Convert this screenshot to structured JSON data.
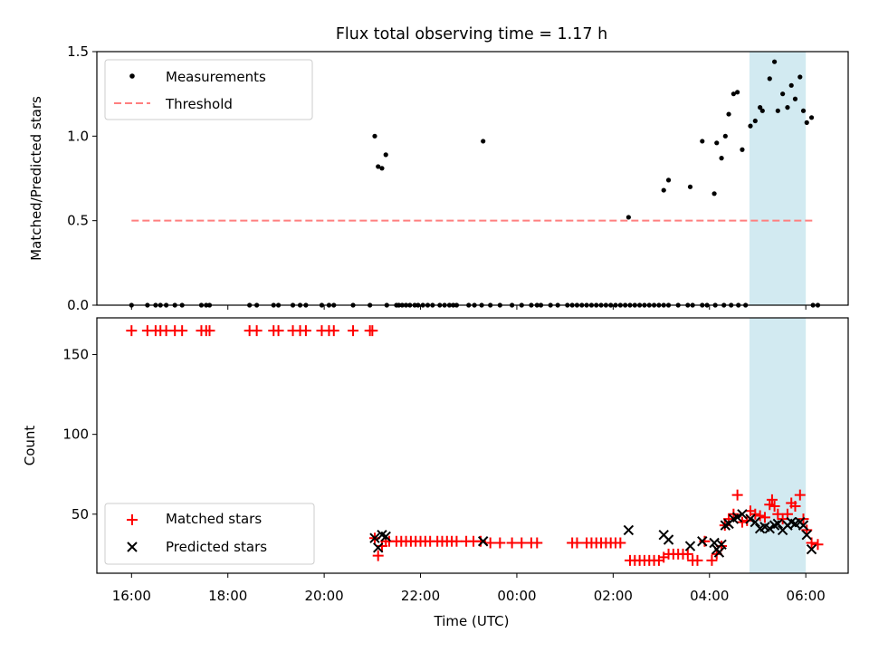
{
  "title": "Flux total observing time = 1.17 h",
  "xlabel": "Time (UTC)",
  "x_ticks": [
    "16:00",
    "18:00",
    "20:00",
    "22:00",
    "00:00",
    "02:00",
    "04:00",
    "06:00"
  ],
  "colors": {
    "measurement": "#000000",
    "threshold": "#ff7f7f",
    "matched": "#ff0000",
    "predicted": "#000000",
    "highlight": "#add8e6"
  },
  "chart_data": [
    {
      "type": "scatter",
      "ylabel": "Matched/Predicted stars",
      "x_unit": "hours since 16:00 UTC",
      "xlim": [
        -0.72,
        14.88
      ],
      "ylim": [
        0,
        1.5
      ],
      "y_ticks": [
        "0.0",
        "0.5",
        "1.0",
        "1.5"
      ],
      "highlight_span": [
        12.83,
        14.0
      ],
      "legend": {
        "placement": "upper left",
        "entries": [
          "Measurements",
          "Threshold"
        ]
      },
      "threshold": {
        "name": "Threshold",
        "y": 0.5,
        "x_range": [
          0,
          14.17
        ]
      },
      "series": [
        {
          "name": "Measurements",
          "points": [
            [
              0.0,
              0
            ],
            [
              0.33,
              0
            ],
            [
              0.5,
              0
            ],
            [
              0.6,
              0
            ],
            [
              0.72,
              0
            ],
            [
              0.9,
              0
            ],
            [
              1.05,
              0
            ],
            [
              1.45,
              0
            ],
            [
              1.55,
              0
            ],
            [
              1.62,
              0
            ],
            [
              2.45,
              0
            ],
            [
              2.6,
              0
            ],
            [
              2.95,
              0
            ],
            [
              3.05,
              0
            ],
            [
              3.35,
              0
            ],
            [
              3.5,
              0
            ],
            [
              3.62,
              0
            ],
            [
              3.95,
              0
            ],
            [
              4.1,
              0
            ],
            [
              4.2,
              0
            ],
            [
              4.6,
              0
            ],
            [
              4.95,
              0
            ],
            [
              5.05,
              1.0
            ],
            [
              5.12,
              0.82
            ],
            [
              5.2,
              0.81
            ],
            [
              5.28,
              0.89
            ],
            [
              5.3,
              0
            ],
            [
              5.5,
              0
            ],
            [
              5.55,
              0
            ],
            [
              5.62,
              0
            ],
            [
              5.7,
              0
            ],
            [
              5.78,
              0
            ],
            [
              5.88,
              0
            ],
            [
              5.95,
              0
            ],
            [
              6.05,
              0
            ],
            [
              6.15,
              0
            ],
            [
              6.25,
              0
            ],
            [
              6.4,
              0
            ],
            [
              6.5,
              0
            ],
            [
              6.6,
              0
            ],
            [
              6.68,
              0
            ],
            [
              6.75,
              0
            ],
            [
              7.0,
              0
            ],
            [
              7.12,
              0
            ],
            [
              7.27,
              0
            ],
            [
              7.3,
              0.97
            ],
            [
              7.45,
              0
            ],
            [
              7.65,
              0
            ],
            [
              7.9,
              0
            ],
            [
              8.1,
              0
            ],
            [
              8.3,
              0
            ],
            [
              8.42,
              0
            ],
            [
              8.5,
              0
            ],
            [
              8.7,
              0
            ],
            [
              8.85,
              0
            ],
            [
              9.05,
              0
            ],
            [
              9.15,
              0
            ],
            [
              9.25,
              0
            ],
            [
              9.35,
              0
            ],
            [
              9.45,
              0
            ],
            [
              9.55,
              0
            ],
            [
              9.65,
              0
            ],
            [
              9.75,
              0
            ],
            [
              9.85,
              0
            ],
            [
              9.95,
              0
            ],
            [
              10.05,
              0
            ],
            [
              10.15,
              0
            ],
            [
              10.25,
              0
            ],
            [
              10.35,
              0
            ],
            [
              10.45,
              0
            ],
            [
              10.55,
              0
            ],
            [
              10.65,
              0
            ],
            [
              10.75,
              0
            ],
            [
              10.85,
              0
            ],
            [
              10.95,
              0
            ],
            [
              11.05,
              0
            ],
            [
              11.15,
              0
            ],
            [
              11.35,
              0
            ],
            [
              11.55,
              0
            ],
            [
              11.65,
              0
            ],
            [
              11.85,
              0
            ],
            [
              11.95,
              0
            ],
            [
              12.12,
              0
            ],
            [
              12.3,
              0
            ],
            [
              12.45,
              0
            ],
            [
              12.6,
              0
            ],
            [
              12.75,
              0
            ],
            [
              10.32,
              0.52
            ],
            [
              11.05,
              0.68
            ],
            [
              11.15,
              0.74
            ],
            [
              11.6,
              0.7
            ],
            [
              11.85,
              0.97
            ],
            [
              12.1,
              0.66
            ],
            [
              12.15,
              0.96
            ],
            [
              12.25,
              0.87
            ],
            [
              12.33,
              1.0
            ],
            [
              12.4,
              1.13
            ],
            [
              12.5,
              1.25
            ],
            [
              12.58,
              1.26
            ],
            [
              12.68,
              0.92
            ],
            [
              12.85,
              1.06
            ],
            [
              12.95,
              1.09
            ],
            [
              13.05,
              1.17
            ],
            [
              13.1,
              1.15
            ],
            [
              13.25,
              1.34
            ],
            [
              13.35,
              1.44
            ],
            [
              13.42,
              1.15
            ],
            [
              13.52,
              1.25
            ],
            [
              13.62,
              1.17
            ],
            [
              13.7,
              1.3
            ],
            [
              13.78,
              1.22
            ],
            [
              13.88,
              1.35
            ],
            [
              13.95,
              1.15
            ],
            [
              14.02,
              1.08
            ],
            [
              14.12,
              1.11
            ],
            [
              14.15,
              0
            ],
            [
              14.25,
              0
            ]
          ]
        }
      ]
    },
    {
      "type": "scatter",
      "ylabel": "Count",
      "x_unit": "hours since 16:00 UTC",
      "xlim": [
        -0.72,
        14.88
      ],
      "ylim": [
        13,
        173
      ],
      "y_ticks": [
        "50",
        "100",
        "150"
      ],
      "highlight_span": [
        12.83,
        14.0
      ],
      "legend": {
        "placement": "lower left",
        "entries": [
          "Matched stars",
          "Predicted stars"
        ]
      },
      "series": [
        {
          "name": "Matched stars",
          "marker": "plus",
          "points": [
            [
              0.0,
              165
            ],
            [
              0.33,
              165
            ],
            [
              0.5,
              165
            ],
            [
              0.6,
              165
            ],
            [
              0.72,
              165
            ],
            [
              0.9,
              165
            ],
            [
              1.05,
              165
            ],
            [
              1.45,
              165
            ],
            [
              1.55,
              165
            ],
            [
              1.62,
              165
            ],
            [
              2.45,
              165
            ],
            [
              2.6,
              165
            ],
            [
              2.95,
              165
            ],
            [
              3.05,
              165
            ],
            [
              3.35,
              165
            ],
            [
              3.5,
              165
            ],
            [
              3.62,
              165
            ],
            [
              3.95,
              165
            ],
            [
              4.1,
              165
            ],
            [
              4.2,
              165
            ],
            [
              4.6,
              165
            ],
            [
              4.95,
              165
            ],
            [
              5.0,
              165
            ],
            [
              5.05,
              35
            ],
            [
              5.12,
              24
            ],
            [
              5.2,
              30
            ],
            [
              5.28,
              33
            ],
            [
              5.35,
              33
            ],
            [
              5.5,
              33
            ],
            [
              5.6,
              33
            ],
            [
              5.7,
              33
            ],
            [
              5.8,
              33
            ],
            [
              5.9,
              33
            ],
            [
              6.0,
              33
            ],
            [
              6.1,
              33
            ],
            [
              6.2,
              33
            ],
            [
              6.35,
              33
            ],
            [
              6.45,
              33
            ],
            [
              6.55,
              33
            ],
            [
              6.65,
              33
            ],
            [
              6.75,
              33
            ],
            [
              6.95,
              33
            ],
            [
              7.1,
              33
            ],
            [
              7.25,
              33
            ],
            [
              7.45,
              32
            ],
            [
              7.65,
              32
            ],
            [
              7.9,
              32
            ],
            [
              8.1,
              32
            ],
            [
              8.3,
              32
            ],
            [
              8.42,
              32
            ],
            [
              9.15,
              32
            ],
            [
              9.25,
              32
            ],
            [
              9.45,
              32
            ],
            [
              9.55,
              32
            ],
            [
              9.65,
              32
            ],
            [
              9.75,
              32
            ],
            [
              9.85,
              32
            ],
            [
              9.95,
              32
            ],
            [
              10.05,
              32
            ],
            [
              10.15,
              32
            ],
            [
              10.35,
              21
            ],
            [
              10.45,
              21
            ],
            [
              10.55,
              21
            ],
            [
              10.65,
              21
            ],
            [
              10.75,
              21
            ],
            [
              10.85,
              21
            ],
            [
              10.95,
              21
            ],
            [
              11.05,
              23
            ],
            [
              11.15,
              25
            ],
            [
              11.25,
              25
            ],
            [
              11.35,
              25
            ],
            [
              11.45,
              25
            ],
            [
              11.55,
              25
            ],
            [
              11.65,
              21
            ],
            [
              11.75,
              21
            ],
            [
              11.9,
              33
            ],
            [
              12.05,
              21
            ],
            [
              12.15,
              25
            ],
            [
              12.25,
              30
            ],
            [
              12.32,
              43
            ],
            [
              12.4,
              47
            ],
            [
              12.5,
              50
            ],
            [
              12.58,
              62
            ],
            [
              12.68,
              45
            ],
            [
              12.78,
              46
            ],
            [
              12.85,
              52
            ],
            [
              12.95,
              50
            ],
            [
              13.05,
              49
            ],
            [
              13.15,
              48
            ],
            [
              13.25,
              56
            ],
            [
              13.3,
              59
            ],
            [
              13.35,
              55
            ],
            [
              13.42,
              50
            ],
            [
              13.52,
              47
            ],
            [
              13.62,
              50
            ],
            [
              13.7,
              57
            ],
            [
              13.78,
              55
            ],
            [
              13.88,
              62
            ],
            [
              13.95,
              47
            ],
            [
              14.02,
              40
            ],
            [
              14.12,
              32
            ],
            [
              14.25,
              31
            ]
          ]
        },
        {
          "name": "Predicted stars",
          "marker": "x",
          "points": [
            [
              5.05,
              35
            ],
            [
              5.12,
              29
            ],
            [
              5.2,
              37
            ],
            [
              5.28,
              36
            ],
            [
              7.3,
              33
            ],
            [
              10.32,
              40
            ],
            [
              11.05,
              37
            ],
            [
              11.15,
              34
            ],
            [
              11.6,
              30
            ],
            [
              11.85,
              33
            ],
            [
              12.1,
              32
            ],
            [
              12.15,
              28
            ],
            [
              12.2,
              26
            ],
            [
              12.25,
              31
            ],
            [
              12.33,
              43
            ],
            [
              12.4,
              44
            ],
            [
              12.5,
              47
            ],
            [
              12.58,
              48
            ],
            [
              12.68,
              50
            ],
            [
              12.85,
              47
            ],
            [
              12.95,
              45
            ],
            [
              13.05,
              41
            ],
            [
              13.15,
              42
            ],
            [
              13.25,
              41
            ],
            [
              13.35,
              43
            ],
            [
              13.42,
              44
            ],
            [
              13.52,
              40
            ],
            [
              13.62,
              43
            ],
            [
              13.7,
              45
            ],
            [
              13.78,
              44
            ],
            [
              13.88,
              45
            ],
            [
              13.95,
              43
            ],
            [
              14.02,
              37
            ],
            [
              14.12,
              28
            ]
          ]
        }
      ]
    }
  ]
}
